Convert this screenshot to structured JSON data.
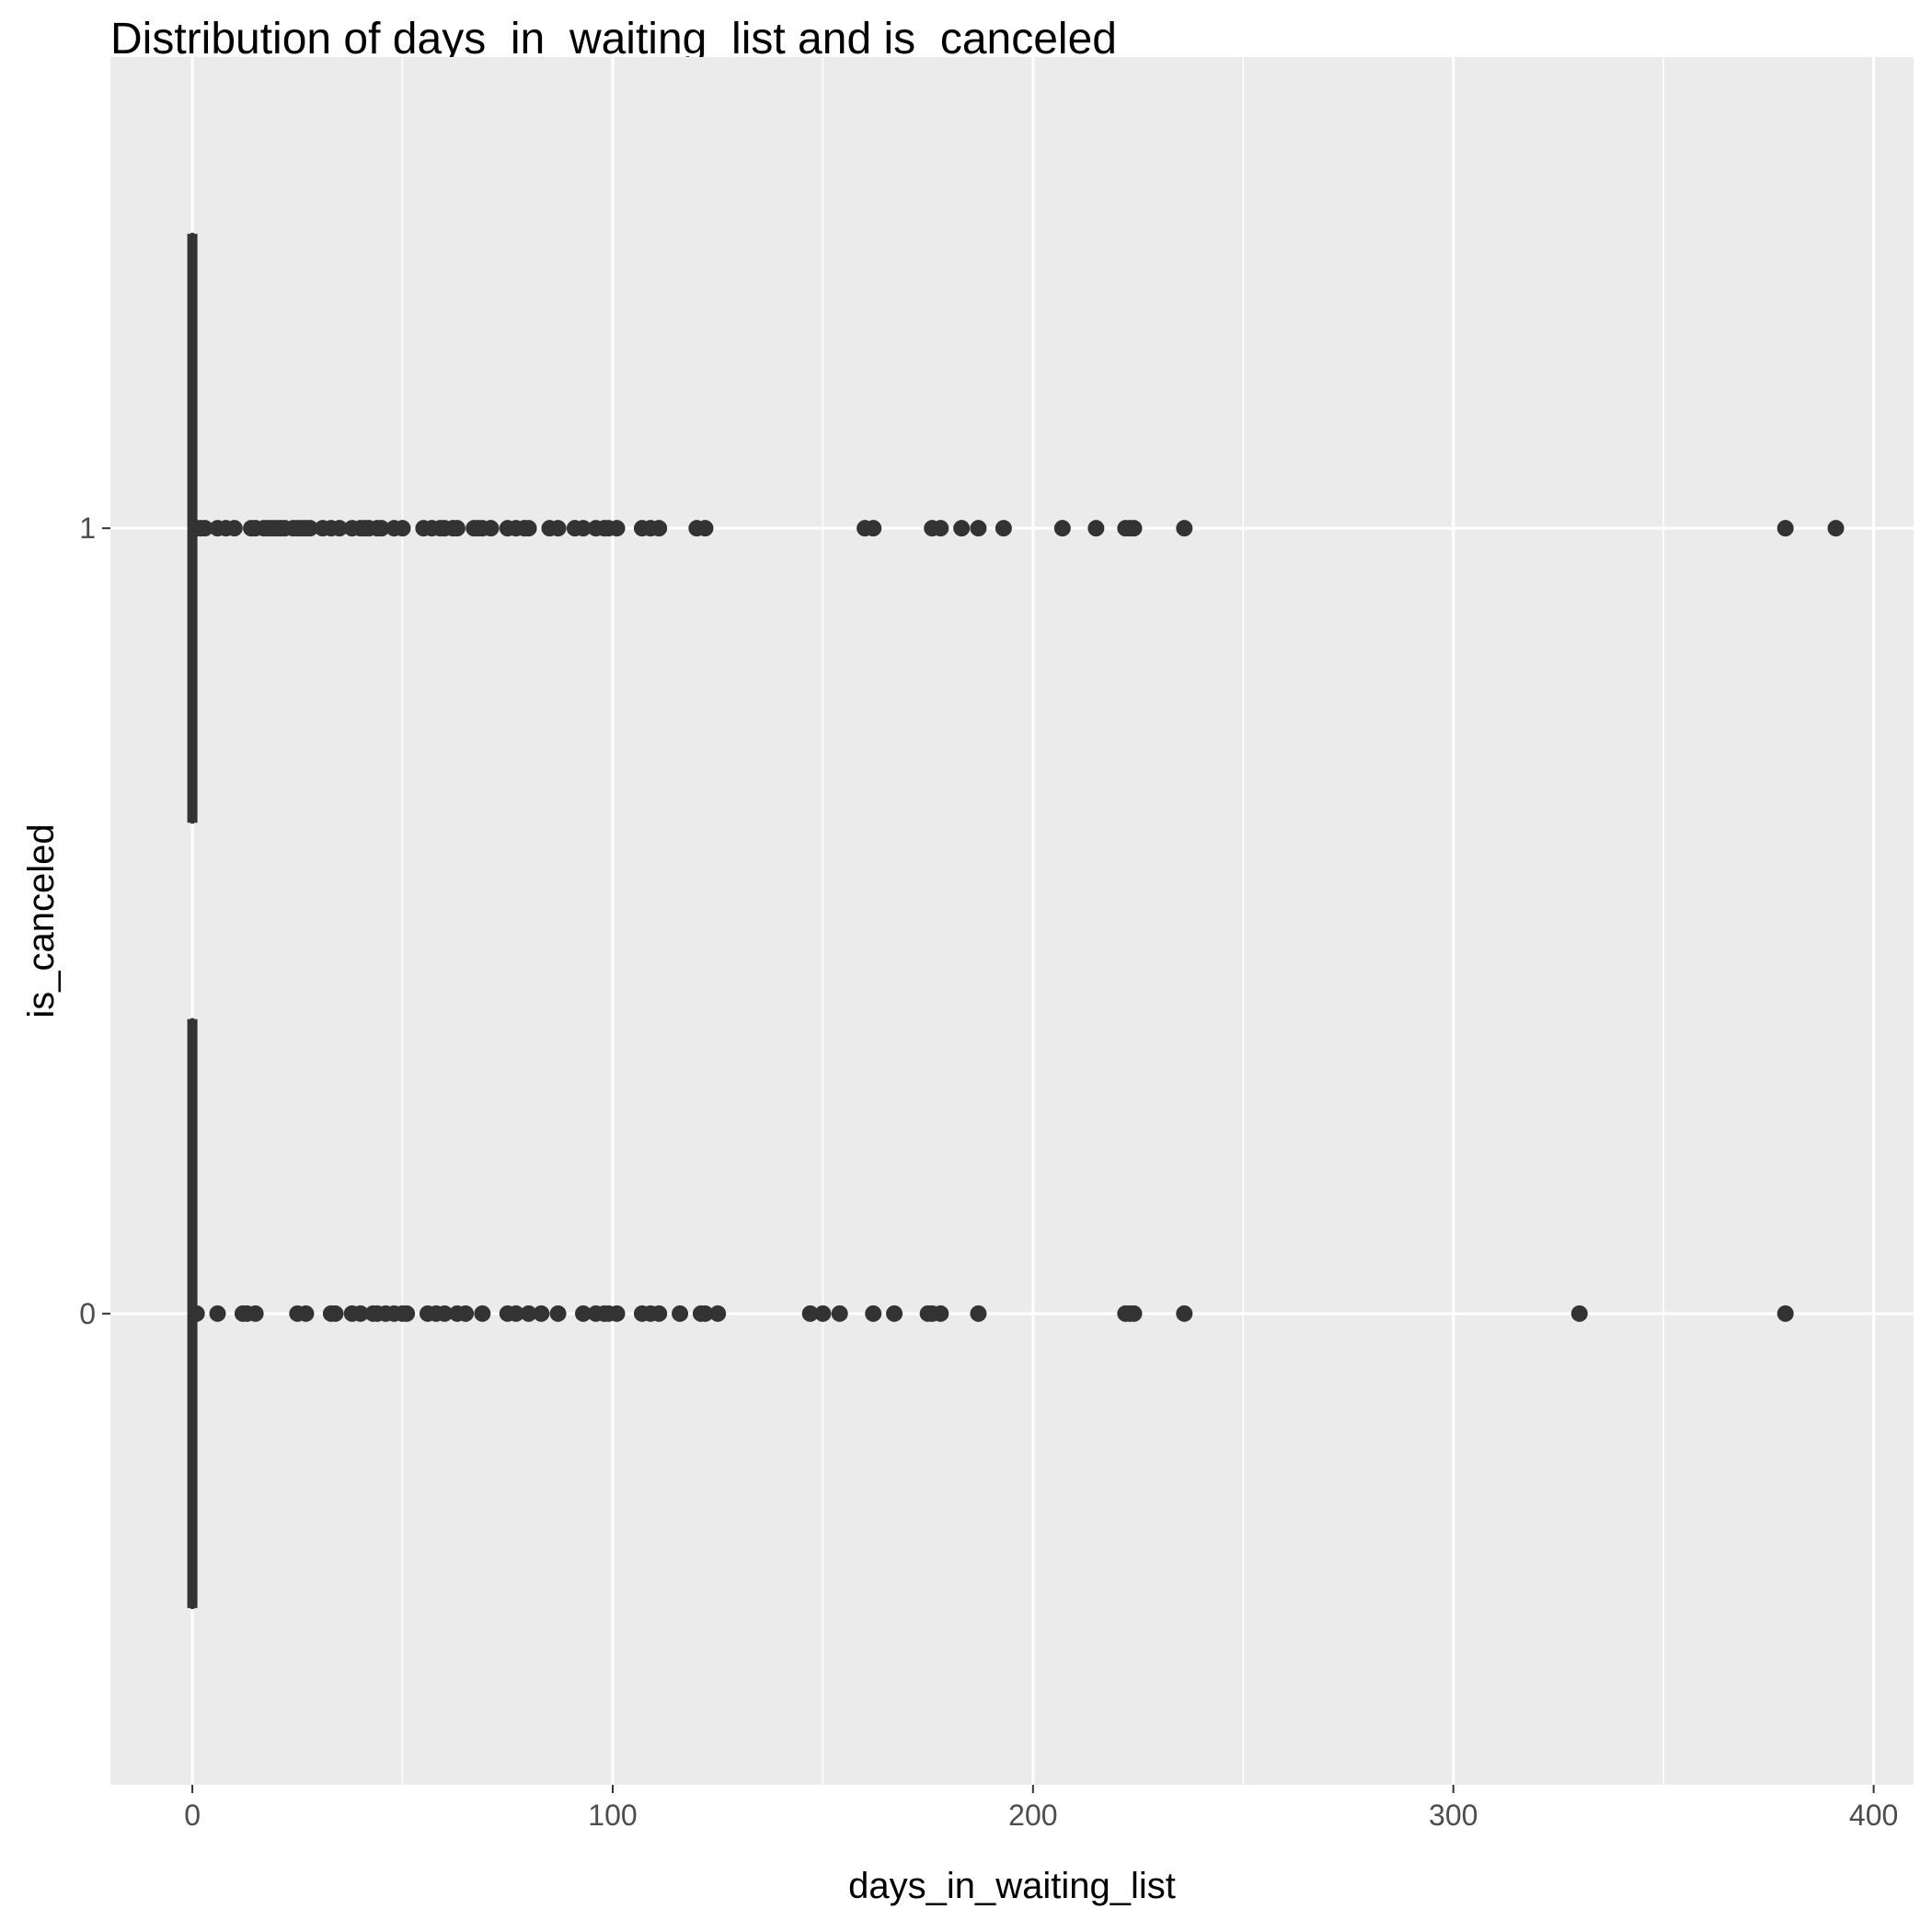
{
  "chart_data": {
    "type": "box",
    "title": "Distribution of days_in_waiting_list and is_canceled",
    "xlabel": "days_in_waiting_list",
    "ylabel": "is_canceled",
    "xlim": [
      -19.5,
      409.5
    ],
    "x_ticks": [
      0,
      100,
      200,
      300,
      400
    ],
    "x_minor_ticks": [
      50,
      150,
      250,
      350
    ],
    "categories": [
      "0",
      "1"
    ],
    "orientation": "horizontal",
    "grid": true,
    "colors": {
      "panel": "#ebebeb",
      "grid": "#ffffff",
      "mark": "#333333",
      "tick_text": "#4d4d4d"
    },
    "groups": [
      {
        "category": "0",
        "box": {
          "min": 0,
          "q1": 0,
          "median": 0,
          "q3": 0,
          "max": 0
        },
        "outliers": [
          1,
          6,
          12,
          13,
          15,
          25,
          27,
          33,
          34,
          38,
          40,
          43,
          44,
          46,
          48,
          50,
          51,
          56,
          58,
          60,
          63,
          65,
          69,
          75,
          77,
          80,
          83,
          87,
          93,
          96,
          98,
          99,
          101,
          107,
          109,
          111,
          116,
          121,
          122,
          125,
          147,
          150,
          154,
          162,
          167,
          175,
          176,
          178,
          187,
          222,
          223,
          224,
          236,
          330,
          379
        ]
      },
      {
        "category": "1",
        "box": {
          "min": 0,
          "q1": 0,
          "median": 0,
          "q3": 0,
          "max": 0
        },
        "outliers": [
          1,
          2,
          3,
          6,
          8,
          10,
          14,
          15,
          17,
          18,
          19,
          20,
          21,
          22,
          24,
          25,
          26,
          27,
          28,
          31,
          33,
          35,
          38,
          40,
          41,
          42,
          44,
          45,
          48,
          50,
          55,
          57,
          59,
          60,
          62,
          63,
          67,
          68,
          69,
          71,
          75,
          77,
          79,
          80,
          85,
          87,
          91,
          93,
          96,
          98,
          99,
          101,
          107,
          109,
          111,
          120,
          122,
          160,
          162,
          176,
          178,
          183,
          187,
          193,
          207,
          215,
          222,
          223,
          224,
          236,
          379,
          391
        ]
      }
    ]
  }
}
